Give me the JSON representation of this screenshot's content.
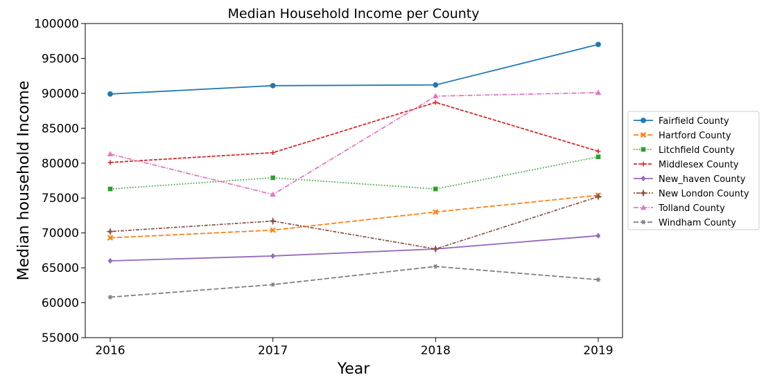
{
  "chart_data": {
    "type": "line",
    "title": "Median Household Income per County",
    "xlabel": "Year",
    "ylabel": "Median household Income",
    "x": [
      "2016",
      "2017",
      "2018",
      "2019"
    ],
    "ylim": [
      55000,
      100000
    ],
    "yticks": [
      "55000",
      "60000",
      "65000",
      "70000",
      "75000",
      "80000",
      "85000",
      "90000",
      "95000",
      "100000"
    ],
    "grid": false,
    "legend_position": "right",
    "series": [
      {
        "name": "Fairfield County",
        "color": "#1f77b4",
        "dash": "solid",
        "marker": "circle",
        "values": [
          89900,
          91100,
          91200,
          97000
        ]
      },
      {
        "name": "Hartford County",
        "color": "#ff7f0e",
        "dash": "dashed",
        "marker": "x",
        "values": [
          69300,
          70400,
          73000,
          75400
        ]
      },
      {
        "name": "Litchfield County",
        "color": "#2ca02c",
        "dash": "dotted",
        "marker": "square",
        "values": [
          76300,
          77900,
          76300,
          80900
        ]
      },
      {
        "name": "Middlesex County",
        "color": "#d62728",
        "dash": "densedash",
        "marker": "plus",
        "values": [
          80100,
          81500,
          88700,
          81700
        ]
      },
      {
        "name": "New_haven County",
        "color": "#9467bd",
        "dash": "solid",
        "marker": "diamond",
        "values": [
          66000,
          66700,
          67700,
          69600
        ]
      },
      {
        "name": "New London County",
        "color": "#8c564b",
        "dash": "dashdot2",
        "marker": "star4",
        "values": [
          70200,
          71700,
          67700,
          75200
        ]
      },
      {
        "name": "Tolland County",
        "color": "#e377c2",
        "dash": "dashdot",
        "marker": "triangle",
        "values": [
          81300,
          75500,
          89600,
          90100
        ]
      },
      {
        "name": "Windham County",
        "color": "#7f7f7f",
        "dash": "dashed",
        "marker": "star6",
        "values": [
          60800,
          62600,
          65200,
          63300
        ]
      }
    ]
  }
}
